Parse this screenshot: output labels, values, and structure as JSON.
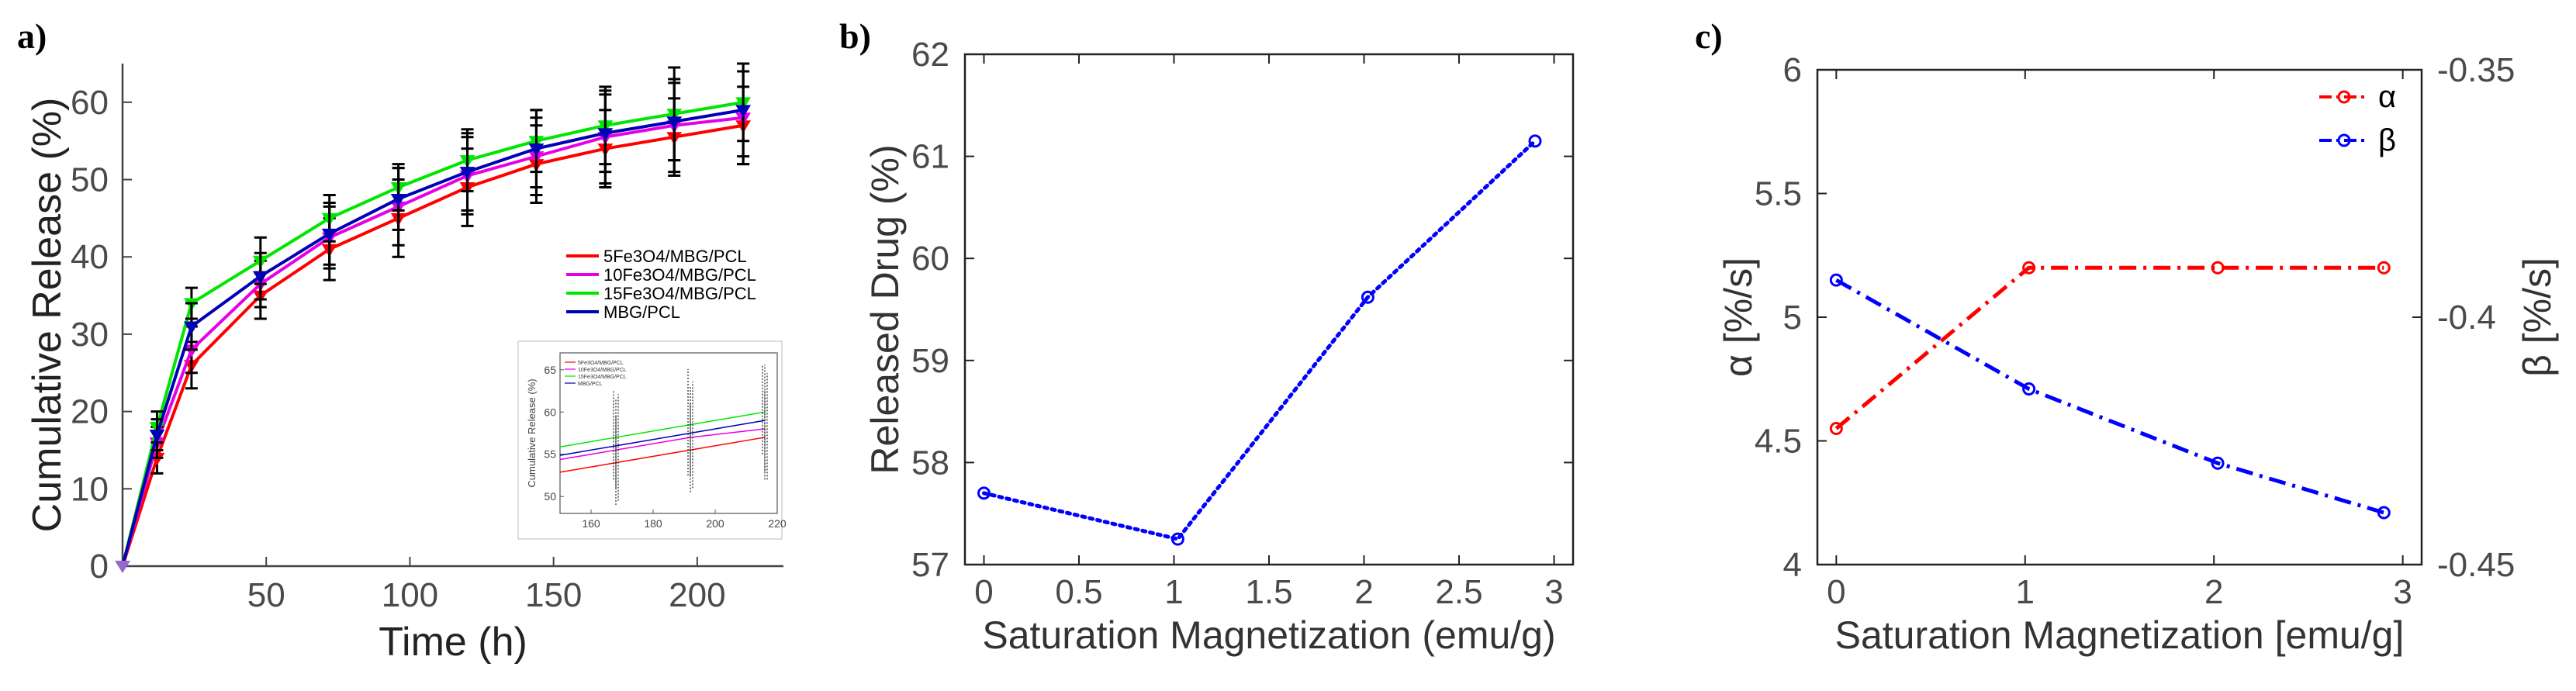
{
  "figure": {
    "panels": [
      "a)",
      "b)",
      "c)"
    ]
  },
  "chart_data": [
    {
      "id": "a",
      "type": "line",
      "panel_label": "a)",
      "xlabel": "Time (h)",
      "ylabel": "Cumulative Release (%)",
      "xlim": [
        0,
        230
      ],
      "ylim": [
        0,
        65
      ],
      "xticks": [
        50,
        100,
        150,
        200
      ],
      "yticks": [
        0,
        10,
        20,
        30,
        40,
        50,
        60
      ],
      "x": [
        0,
        12,
        24,
        48,
        72,
        96,
        120,
        144,
        168,
        192,
        216
      ],
      "series": [
        {
          "name": "5Fe3O4/MBG/PCL",
          "color": "#ff0000",
          "values": [
            0,
            14,
            26,
            35,
            41,
            45,
            49,
            52,
            54,
            55.5,
            57
          ],
          "errors": [
            0,
            2,
            3,
            3,
            4,
            5,
            5,
            5,
            5,
            5,
            5
          ]
        },
        {
          "name": "10Fe3O4/MBG/PCL",
          "color": "#e600e6",
          "values": [
            0,
            16,
            28,
            36.5,
            42.5,
            46.5,
            50.5,
            53,
            55.5,
            57,
            58
          ],
          "errors": [
            0,
            2,
            3,
            3,
            4,
            5,
            5,
            5,
            6,
            6,
            6
          ]
        },
        {
          "name": "15Fe3O4/MBG/PCL",
          "color": "#00e600",
          "values": [
            0,
            18,
            34,
            39.5,
            45,
            49,
            52.5,
            55,
            57,
            58.5,
            60
          ],
          "errors": [
            0,
            2,
            2,
            3,
            3,
            3,
            4,
            4,
            5,
            6,
            5
          ]
        },
        {
          "name": "MBG/PCL",
          "color": "#0000b4",
          "values": [
            0,
            17,
            31,
            37.5,
            43,
            47.5,
            51,
            54,
            56,
            57.5,
            59
          ],
          "errors": [
            0,
            2,
            3,
            3,
            4,
            4,
            5,
            5,
            5,
            5,
            6
          ]
        }
      ],
      "legend": [
        "5Fe3O4/MBG/PCL",
        "10Fe3O4/MBG/PCL",
        "15Fe3O4/MBG/PCL",
        "MBG/PCL"
      ],
      "inset": {
        "xlim": [
          150,
          220
        ],
        "ylim": [
          48,
          67
        ],
        "xticks": [
          160,
          180,
          200,
          220
        ],
        "yticks": [
          50,
          55,
          60,
          65
        ],
        "ylabel": "Cumulative Release (%)",
        "x": [
          168,
          192,
          216
        ],
        "legend": [
          "5Fe3O4/MBG/PCL",
          "10Fe3O4/MBG/PCL",
          "15Fe3O4/MBG/PCL",
          "MBG/PCL"
        ]
      }
    },
    {
      "id": "b",
      "type": "line",
      "panel_label": "b)",
      "xlabel": "Saturation Magnetization (emu/g)",
      "ylabel": "Released Drug (%)",
      "xlim": [
        -0.1,
        3.1
      ],
      "ylim": [
        57,
        62
      ],
      "xticks": [
        0,
        0.5,
        1,
        1.5,
        2,
        2.5,
        3
      ],
      "yticks": [
        57,
        58,
        59,
        60,
        61,
        62
      ],
      "x": [
        0,
        1.02,
        2.02,
        2.9
      ],
      "values": [
        57.7,
        57.25,
        59.62,
        61.15
      ],
      "color": "#0000ff"
    },
    {
      "id": "c",
      "type": "line",
      "panel_label": "c)",
      "xlabel": "Saturation Magnetization [emu/g]",
      "ylabel_left": "α [%/s]",
      "ylabel_right": "β [%/s]",
      "xlim": [
        -0.1,
        3.1
      ],
      "ylim_left": [
        4,
        6
      ],
      "ylim_right": [
        -0.45,
        -0.35
      ],
      "xticks": [
        0,
        1,
        2,
        3
      ],
      "yticks_left": [
        4,
        4.5,
        5,
        5.5,
        6
      ],
      "yticks_right": [
        -0.45,
        -0.4,
        -0.35
      ],
      "x": [
        0,
        1.02,
        2.02,
        2.9
      ],
      "series": [
        {
          "name": "α",
          "axis": "left",
          "color": "#ff0000",
          "values": [
            4.55,
            5.2,
            5.2,
            5.2
          ]
        },
        {
          "name": "β",
          "axis": "right",
          "color": "#0000ff",
          "values": [
            -0.3925,
            -0.4145,
            -0.4295,
            -0.4395
          ]
        }
      ],
      "legend": [
        "α",
        "β"
      ]
    }
  ]
}
